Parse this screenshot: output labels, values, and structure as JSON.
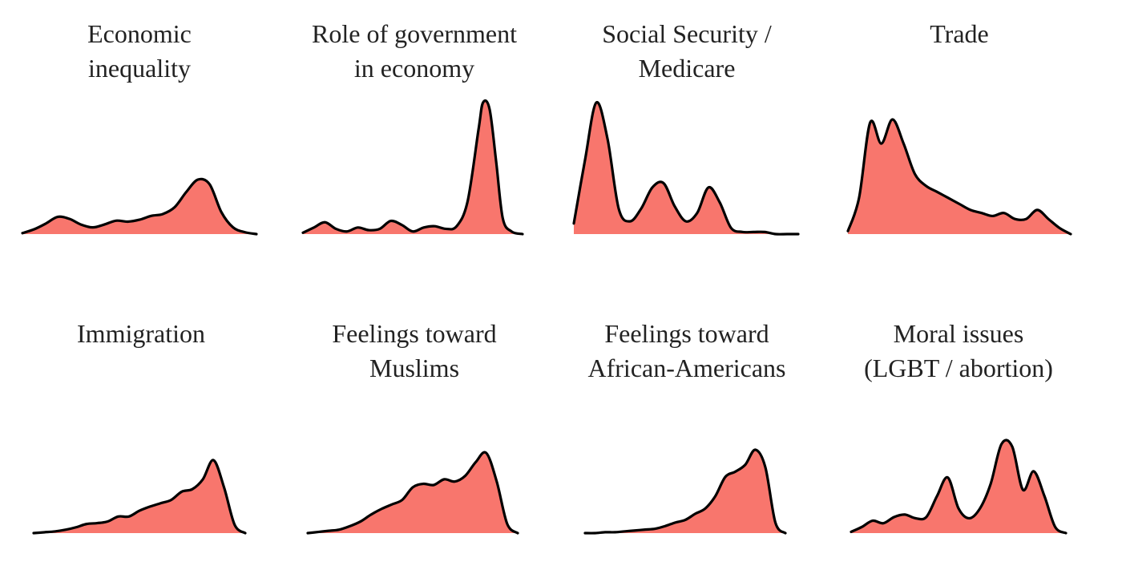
{
  "chart_data": [
    {
      "type": "area",
      "title": [
        "Economic",
        "inequality"
      ],
      "fill": "#f8766d",
      "stroke": "#000000",
      "grid": false,
      "axes_shown": false,
      "x": [
        0,
        0.05,
        0.1,
        0.15,
        0.2,
        0.25,
        0.3,
        0.35,
        0.4,
        0.45,
        0.5,
        0.55,
        0.6,
        0.65,
        0.7,
        0.75,
        0.8,
        0.85,
        0.9,
        0.95,
        1.0
      ],
      "y": [
        0.01,
        0.05,
        0.11,
        0.18,
        0.16,
        0.1,
        0.07,
        0.1,
        0.14,
        0.13,
        0.15,
        0.19,
        0.21,
        0.28,
        0.44,
        0.57,
        0.52,
        0.23,
        0.07,
        0.02,
        0.0
      ]
    },
    {
      "type": "area",
      "title": [
        "Role of government",
        "in economy"
      ],
      "fill": "#f8766d",
      "stroke": "#000000",
      "grid": false,
      "axes_shown": false,
      "x": [
        0,
        0.05,
        0.1,
        0.15,
        0.2,
        0.25,
        0.3,
        0.35,
        0.4,
        0.45,
        0.5,
        0.55,
        0.6,
        0.65,
        0.7,
        0.75,
        0.8,
        0.82,
        0.85,
        0.88,
        0.91,
        0.95,
        1.0
      ],
      "y": [
        0.01,
        0.05,
        0.09,
        0.04,
        0.02,
        0.05,
        0.03,
        0.04,
        0.1,
        0.07,
        0.02,
        0.05,
        0.06,
        0.04,
        0.06,
        0.25,
        0.8,
        1.0,
        0.95,
        0.55,
        0.12,
        0.02,
        0.0
      ]
    },
    {
      "type": "area",
      "title": [
        "Social Security /",
        "Medicare"
      ],
      "fill": "#f8766d",
      "stroke": "#000000",
      "grid": false,
      "axes_shown": false,
      "x": [
        0,
        0.05,
        0.1,
        0.15,
        0.2,
        0.25,
        0.3,
        0.35,
        0.4,
        0.45,
        0.5,
        0.55,
        0.6,
        0.65,
        0.7,
        0.75,
        0.8,
        0.85,
        0.9,
        0.95,
        1.0
      ],
      "y": [
        0.05,
        0.35,
        0.62,
        0.45,
        0.12,
        0.06,
        0.12,
        0.22,
        0.24,
        0.13,
        0.06,
        0.1,
        0.22,
        0.15,
        0.03,
        0.01,
        0.01,
        0.01,
        0.0,
        0.0,
        0.0
      ]
    },
    {
      "type": "area",
      "title": [
        "Trade"
      ],
      "fill": "#f8766d",
      "stroke": "#000000",
      "grid": false,
      "axes_shown": false,
      "x": [
        0,
        0.05,
        0.1,
        0.15,
        0.2,
        0.25,
        0.3,
        0.35,
        0.4,
        0.45,
        0.5,
        0.55,
        0.6,
        0.65,
        0.7,
        0.75,
        0.8,
        0.85,
        0.9,
        0.95,
        1.0
      ],
      "y": [
        0.01,
        0.12,
        0.37,
        0.3,
        0.38,
        0.3,
        0.2,
        0.16,
        0.14,
        0.12,
        0.1,
        0.08,
        0.07,
        0.06,
        0.07,
        0.05,
        0.05,
        0.08,
        0.05,
        0.02,
        0.0
      ]
    },
    {
      "type": "area",
      "title": [
        "Immigration"
      ],
      "fill": "#f8766d",
      "stroke": "#000000",
      "grid": false,
      "axes_shown": false,
      "x": [
        0,
        0.05,
        0.1,
        0.15,
        0.2,
        0.25,
        0.3,
        0.35,
        0.4,
        0.45,
        0.5,
        0.55,
        0.6,
        0.65,
        0.7,
        0.75,
        0.8,
        0.85,
        0.9,
        0.95,
        1.0
      ],
      "y": [
        0.0,
        0.01,
        0.02,
        0.04,
        0.07,
        0.11,
        0.12,
        0.14,
        0.2,
        0.2,
        0.27,
        0.32,
        0.36,
        0.4,
        0.5,
        0.53,
        0.65,
        0.88,
        0.55,
        0.1,
        0.0
      ]
    },
    {
      "type": "area",
      "title": [
        "Feelings toward",
        "Muslims"
      ],
      "fill": "#f8766d",
      "stroke": "#000000",
      "grid": false,
      "axes_shown": false,
      "x": [
        0,
        0.05,
        0.1,
        0.15,
        0.2,
        0.25,
        0.3,
        0.35,
        0.4,
        0.45,
        0.5,
        0.55,
        0.6,
        0.65,
        0.7,
        0.75,
        0.8,
        0.85,
        0.9,
        0.95,
        1.0
      ],
      "y": [
        0.0,
        0.01,
        0.02,
        0.03,
        0.06,
        0.1,
        0.16,
        0.21,
        0.25,
        0.29,
        0.4,
        0.43,
        0.42,
        0.47,
        0.45,
        0.5,
        0.62,
        0.7,
        0.45,
        0.08,
        0.0
      ]
    },
    {
      "type": "area",
      "title": [
        "Feelings toward",
        "African-Americans"
      ],
      "fill": "#f8766d",
      "stroke": "#000000",
      "grid": false,
      "axes_shown": false,
      "x": [
        0,
        0.05,
        0.1,
        0.15,
        0.2,
        0.25,
        0.3,
        0.35,
        0.4,
        0.45,
        0.5,
        0.55,
        0.6,
        0.65,
        0.7,
        0.75,
        0.8,
        0.85,
        0.9,
        0.95,
        1.0
      ],
      "y": [
        0.0,
        0.0,
        0.01,
        0.01,
        0.02,
        0.03,
        0.04,
        0.05,
        0.08,
        0.12,
        0.15,
        0.22,
        0.28,
        0.42,
        0.64,
        0.7,
        0.78,
        0.95,
        0.75,
        0.12,
        0.0
      ]
    },
    {
      "type": "area",
      "title": [
        "Moral issues",
        "(LGBT / abortion)"
      ],
      "fill": "#f8766d",
      "stroke": "#000000",
      "grid": false,
      "axes_shown": false,
      "x": [
        0,
        0.05,
        0.1,
        0.15,
        0.2,
        0.25,
        0.3,
        0.35,
        0.4,
        0.45,
        0.5,
        0.55,
        0.6,
        0.65,
        0.7,
        0.75,
        0.8,
        0.85,
        0.9,
        0.95,
        1.0
      ],
      "y": [
        0.01,
        0.05,
        0.1,
        0.08,
        0.13,
        0.15,
        0.12,
        0.13,
        0.3,
        0.45,
        0.2,
        0.12,
        0.2,
        0.4,
        0.72,
        0.7,
        0.35,
        0.5,
        0.3,
        0.05,
        0.0
      ]
    }
  ]
}
